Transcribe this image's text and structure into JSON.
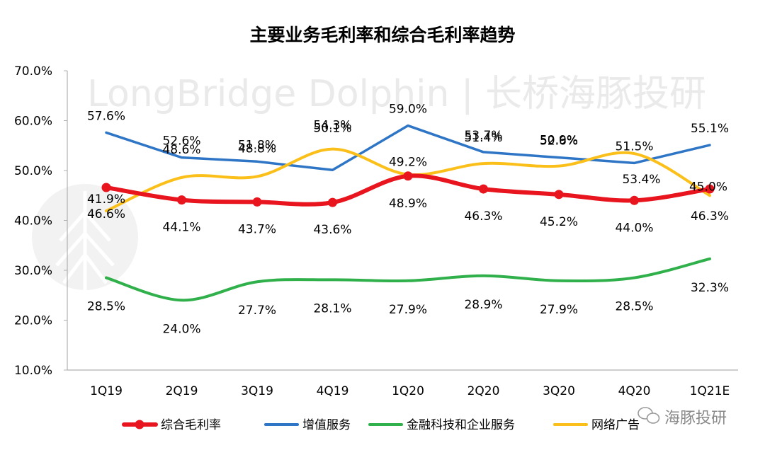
{
  "chart_data": {
    "type": "line",
    "title": "主要业务毛利率和综合毛利率趋势",
    "categories": [
      "1Q19",
      "2Q19",
      "3Q19",
      "4Q19",
      "1Q20",
      "2Q20",
      "3Q20",
      "4Q20",
      "1Q21E"
    ],
    "ylim": [
      10,
      70
    ],
    "yticks": [
      "10.0%",
      "20.0%",
      "30.0%",
      "40.0%",
      "50.0%",
      "60.0%",
      "70.0%"
    ],
    "xlabel": "",
    "ylabel": "",
    "grid": false,
    "legend_position": "bottom",
    "series": [
      {
        "name": "综合毛利率",
        "color": "#e8141e",
        "values": [
          46.6,
          44.1,
          43.7,
          43.6,
          48.9,
          46.3,
          45.2,
          44.0,
          46.3
        ],
        "labels": [
          "46.6%",
          "44.1%",
          "43.7%",
          "43.6%",
          "48.9%",
          "46.3%",
          "45.2%",
          "44.0%",
          "46.3%"
        ]
      },
      {
        "name": "增值服务",
        "color": "#2e75c6",
        "values": [
          57.6,
          52.6,
          51.8,
          50.1,
          59.0,
          53.7,
          52.6,
          51.5,
          55.1
        ],
        "labels": [
          "57.6%",
          "52.6%",
          "51.8%",
          "50.1%",
          "59.0%",
          "53.7%",
          "52.6%",
          "51.5%",
          "55.1%"
        ]
      },
      {
        "name": "金融科技和企业服务",
        "color": "#2fb04a",
        "values": [
          28.5,
          24.0,
          27.7,
          28.1,
          27.9,
          28.9,
          27.9,
          28.5,
          32.3
        ],
        "labels": [
          "28.5%",
          "24.0%",
          "27.7%",
          "28.1%",
          "27.9%",
          "28.9%",
          "27.9%",
          "28.5%",
          "32.3%"
        ]
      },
      {
        "name": "网络广告",
        "color": "#fbbf1a",
        "values": [
          41.9,
          48.6,
          48.8,
          54.3,
          49.2,
          51.4,
          50.9,
          53.4,
          45.0
        ],
        "labels": [
          "41.9%",
          "48.6%",
          "48.8%",
          "54.3%",
          "49.2%",
          "51.4%",
          "50.9%",
          "53.4%",
          "45.0%"
        ]
      }
    ]
  },
  "watermark": "LongBridge Dolphin | 长桥海豚投研",
  "wechat_badge": "海豚投研",
  "colors": {
    "axis": "#b0b0b0",
    "text": "#1a1a1a"
  }
}
